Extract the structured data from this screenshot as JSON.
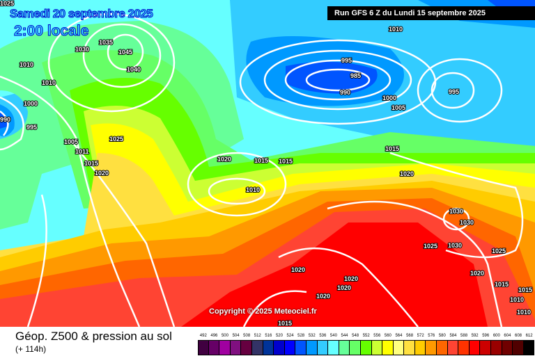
{
  "header": {
    "date": "Samedi 20 septembre 2025",
    "time": "2:00 locale",
    "run": "Run GFS 6 Z du Lundi 15 septembre 2025"
  },
  "copyright": "Copyright © 2025 Meteociel.fr",
  "legend": {
    "title": "Géop. Z500 & pression au sol",
    "lead": "(+ 114h)",
    "scale": [
      {
        "v": "492",
        "c": "#400040"
      },
      {
        "v": "496",
        "c": "#660066"
      },
      {
        "v": "500",
        "c": "#a000a0"
      },
      {
        "v": "504",
        "c": "#801080"
      },
      {
        "v": "508",
        "c": "#660040"
      },
      {
        "v": "512",
        "c": "#333366"
      },
      {
        "v": "516",
        "c": "#003399"
      },
      {
        "v": "520",
        "c": "#0000cc"
      },
      {
        "v": "524",
        "c": "#0000ff"
      },
      {
        "v": "528",
        "c": "#0055ff"
      },
      {
        "v": "532",
        "c": "#0099ff"
      },
      {
        "v": "536",
        "c": "#33ccff"
      },
      {
        "v": "540",
        "c": "#66ffff"
      },
      {
        "v": "544",
        "c": "#66ff99"
      },
      {
        "v": "548",
        "c": "#66ff66"
      },
      {
        "v": "552",
        "c": "#66ff00"
      },
      {
        "v": "556",
        "c": "#ccff33"
      },
      {
        "v": "560",
        "c": "#ffff00"
      },
      {
        "v": "564",
        "c": "#ffff80"
      },
      {
        "v": "568",
        "c": "#ffe040"
      },
      {
        "v": "572",
        "c": "#ffcc00"
      },
      {
        "v": "576",
        "c": "#ff9900"
      },
      {
        "v": "580",
        "c": "#ff6600"
      },
      {
        "v": "584",
        "c": "#ff4433"
      },
      {
        "v": "588",
        "c": "#ff3300"
      },
      {
        "v": "592",
        "c": "#ff0000"
      },
      {
        "v": "596",
        "c": "#cc0000"
      },
      {
        "v": "600",
        "c": "#990000"
      },
      {
        "v": "604",
        "c": "#700000"
      },
      {
        "v": "608",
        "c": "#500000"
      },
      {
        "v": "612",
        "c": "#000000"
      }
    ]
  },
  "isobar_labels": [
    "1025",
    "1010",
    "1030",
    "1035",
    "1045",
    "1040",
    "1010",
    "1000",
    "990",
    "995",
    "1005",
    "1011",
    "1015",
    "1020",
    "1025",
    "1020",
    "1015",
    "1015",
    "1010",
    "995",
    "985",
    "990",
    "1000",
    "1005",
    "995",
    "1010",
    "1015",
    "1020",
    "1030",
    "1030",
    "1025",
    "1030",
    "1025",
    "1020",
    "1020",
    "1020",
    "1020",
    "1020",
    "1015",
    "1015",
    "1010",
    "1010",
    "1015"
  ]
}
